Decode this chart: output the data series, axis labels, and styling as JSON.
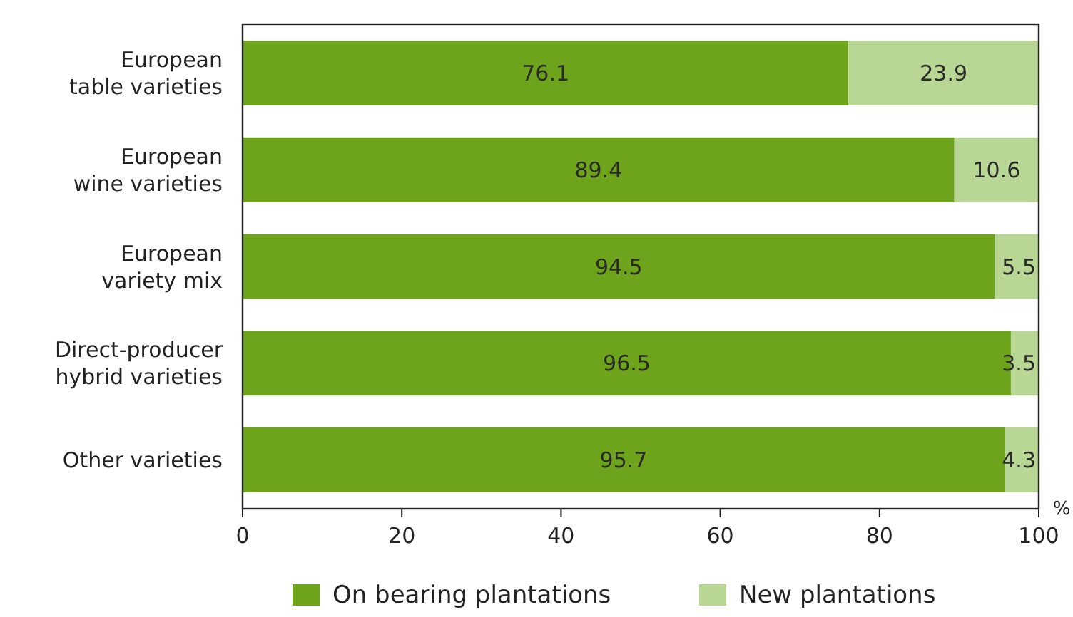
{
  "chart_data": {
    "type": "bar",
    "orientation": "horizontal",
    "stacked": true,
    "categories": [
      "European table varieties",
      "European wine varieties",
      "European variety mix",
      "Direct-producer hybrid varieties",
      "Other varieties"
    ],
    "series": [
      {
        "name": "On bearing plantations",
        "color": "#6ea41c",
        "values": [
          76.1,
          89.4,
          94.5,
          96.5,
          95.7
        ]
      },
      {
        "name": "New plantations",
        "color": "#b8d694",
        "values": [
          23.9,
          10.6,
          5.5,
          3.5,
          4.3
        ]
      }
    ],
    "xlabel": "%",
    "xlim": [
      0,
      100
    ],
    "xticks": [
      0,
      20,
      40,
      60,
      80,
      100
    ],
    "data_labels": true,
    "legend": "bottom",
    "grid": false
  }
}
